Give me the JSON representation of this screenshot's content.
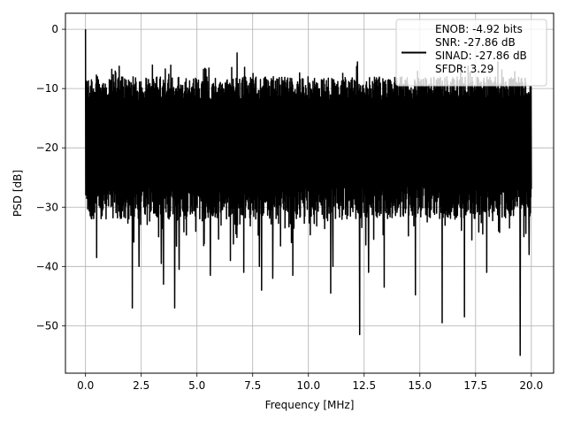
{
  "chart_data": {
    "type": "line",
    "xlabel": "Frequency [MHz]",
    "ylabel": "PSD [dB]",
    "xlim": [
      -0.9,
      21.0
    ],
    "ylim": [
      -58.0,
      2.7
    ],
    "xticks": [
      0.0,
      2.5,
      5.0,
      7.5,
      10.0,
      12.5,
      15.0,
      17.5,
      20.0
    ],
    "xtick_labels": [
      "0.0",
      "2.5",
      "5.0",
      "7.5",
      "10.0",
      "12.5",
      "15.0",
      "17.5",
      "20.0"
    ],
    "yticks": [
      0,
      -10,
      -20,
      -30,
      -40,
      -50
    ],
    "ytick_labels": [
      "0",
      "−10",
      "−20",
      "−30",
      "−40",
      "−50"
    ],
    "grid": true,
    "legend_position": "top-right",
    "series": [
      {
        "name": "ENOB: -4.92 bits\nSNR: -27.86 dB\nSINAD: -27.86 dB\nSFDR: 3.29",
        "color": "#000000",
        "x_range": [
          0.0,
          20.0
        ],
        "dense_band": {
          "upper_typical": -8.0,
          "lower_typical": -32.0
        },
        "peaks": [
          {
            "x": 0.0,
            "y": 0.0
          },
          {
            "x": 6.8,
            "y": -4.0
          },
          {
            "x": 12.2,
            "y": -5.5
          },
          {
            "x": 16.0,
            "y": -5.5
          },
          {
            "x": 18.5,
            "y": -5.5
          }
        ],
        "nulls": [
          {
            "x": 0.5,
            "y": -38.5
          },
          {
            "x": 2.1,
            "y": -47.0
          },
          {
            "x": 2.4,
            "y": -40.0
          },
          {
            "x": 3.4,
            "y": -39.5
          },
          {
            "x": 3.5,
            "y": -43.0
          },
          {
            "x": 4.0,
            "y": -47.0
          },
          {
            "x": 4.2,
            "y": -40.5
          },
          {
            "x": 5.6,
            "y": -41.5
          },
          {
            "x": 6.5,
            "y": -39.0
          },
          {
            "x": 7.1,
            "y": -41.0
          },
          {
            "x": 7.8,
            "y": -40.0
          },
          {
            "x": 7.9,
            "y": -44.0
          },
          {
            "x": 8.4,
            "y": -42.0
          },
          {
            "x": 9.3,
            "y": -41.5
          },
          {
            "x": 11.0,
            "y": -44.5
          },
          {
            "x": 11.1,
            "y": -40.0
          },
          {
            "x": 12.3,
            "y": -51.5
          },
          {
            "x": 12.7,
            "y": -41.0
          },
          {
            "x": 13.4,
            "y": -43.5
          },
          {
            "x": 14.8,
            "y": -44.8
          },
          {
            "x": 16.0,
            "y": -49.5
          },
          {
            "x": 17.0,
            "y": -48.5
          },
          {
            "x": 18.0,
            "y": -41.0
          },
          {
            "x": 19.5,
            "y": -55.0
          },
          {
            "x": 19.9,
            "y": -38.0
          }
        ]
      }
    ]
  }
}
